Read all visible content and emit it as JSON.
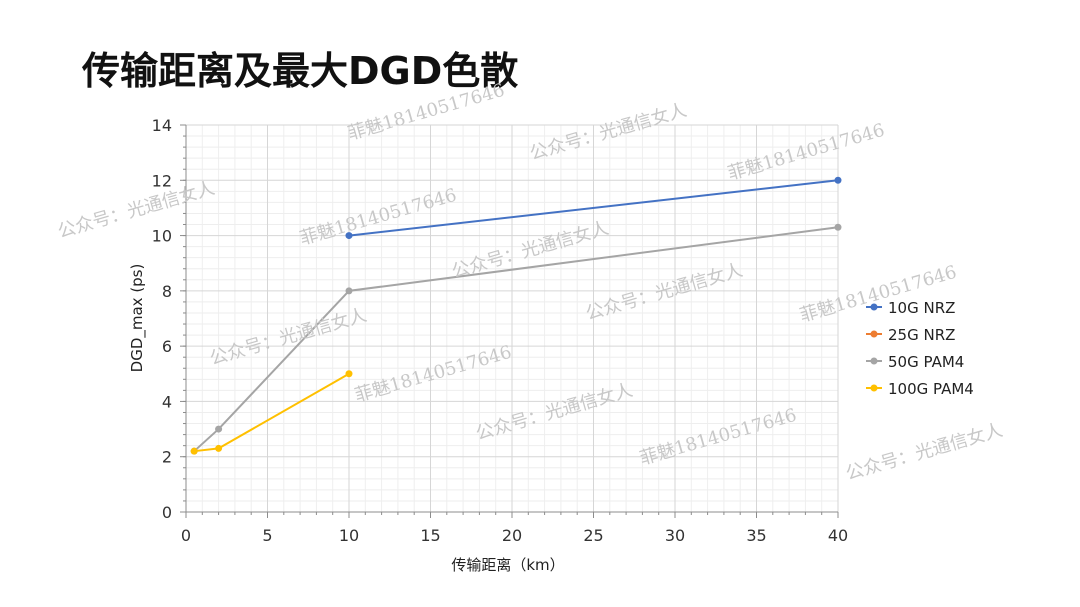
{
  "title": "传输距离及最大DGD色散",
  "chart_data": {
    "type": "line",
    "title": "传输距离及最大DGD色散",
    "xlabel": "传输距离（km）",
    "ylabel": "DGD_max (ps)",
    "xlim": [
      0,
      40
    ],
    "ylim": [
      0,
      14
    ],
    "xticks": [
      0,
      5,
      10,
      15,
      20,
      25,
      30,
      35,
      40
    ],
    "yticks": [
      0,
      2,
      4,
      6,
      8,
      10,
      12,
      14
    ],
    "grid": true,
    "legend_position": "right",
    "series": [
      {
        "name": "10G NRZ",
        "color": "#4472c4",
        "points": [
          [
            10,
            10
          ],
          [
            40,
            12
          ]
        ]
      },
      {
        "name": "25G NRZ",
        "color": "#ed7d31",
        "points": []
      },
      {
        "name": "50G PAM4",
        "color": "#a5a5a5",
        "points": [
          [
            0.5,
            2.2
          ],
          [
            2,
            3
          ],
          [
            10,
            8
          ],
          [
            40,
            10.3
          ]
        ]
      },
      {
        "name": "100G PAM4",
        "color": "#ffc000",
        "points": [
          [
            0.5,
            2.2
          ],
          [
            2,
            2.3
          ],
          [
            10,
            5
          ]
        ]
      }
    ]
  },
  "watermarks": [
    "公众号：光通信女人",
    "菲魅18140517646",
    "公众号：光通信女人",
    "菲魅18140517646",
    "公众号：光通信女人",
    "菲魅18140517646",
    "公众号：光通信女人",
    "菲魅18140517646",
    "公众号：光通信女人",
    "菲魅18140517646",
    "公众号：光通信女人",
    "菲魅18140517646",
    "公众号：光通信女人"
  ]
}
